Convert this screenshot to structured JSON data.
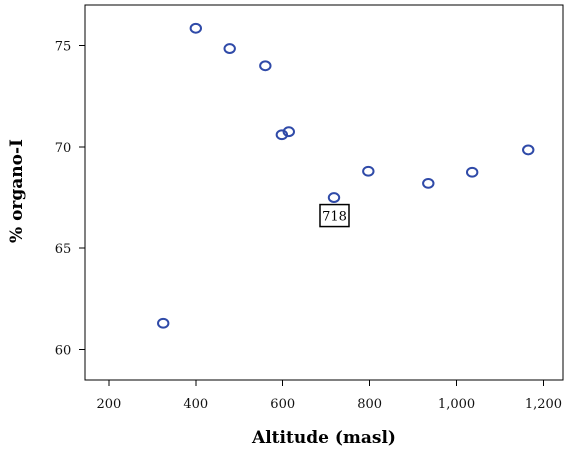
{
  "chart_data": {
    "type": "scatter",
    "xlabel": "Altitude (masl)",
    "ylabel": "% organo-I",
    "xlim": [
      145,
      1245
    ],
    "ylim": [
      58.5,
      77
    ],
    "xticks": [
      200,
      400,
      600,
      800,
      1000,
      1200
    ],
    "xtick_labels": [
      "200",
      "400",
      "600",
      "800",
      "1,000",
      "1,200"
    ],
    "yticks": [
      60,
      65,
      70,
      75
    ],
    "ytick_labels": [
      "60",
      "65",
      "70",
      "75"
    ],
    "grid": false,
    "point_color": "#2f4aa8",
    "points": [
      {
        "x": 325,
        "y": 61.3
      },
      {
        "x": 400,
        "y": 75.85
      },
      {
        "x": 478,
        "y": 74.85
      },
      {
        "x": 560,
        "y": 74.0
      },
      {
        "x": 598,
        "y": 70.6
      },
      {
        "x": 614,
        "y": 70.75
      },
      {
        "x": 718,
        "y": 67.5
      },
      {
        "x": 797,
        "y": 68.8
      },
      {
        "x": 935,
        "y": 68.2
      },
      {
        "x": 1036,
        "y": 68.75
      },
      {
        "x": 1165,
        "y": 69.85
      }
    ],
    "annotations": [
      {
        "text": "718",
        "x": 718,
        "y": 67.5
      }
    ]
  }
}
